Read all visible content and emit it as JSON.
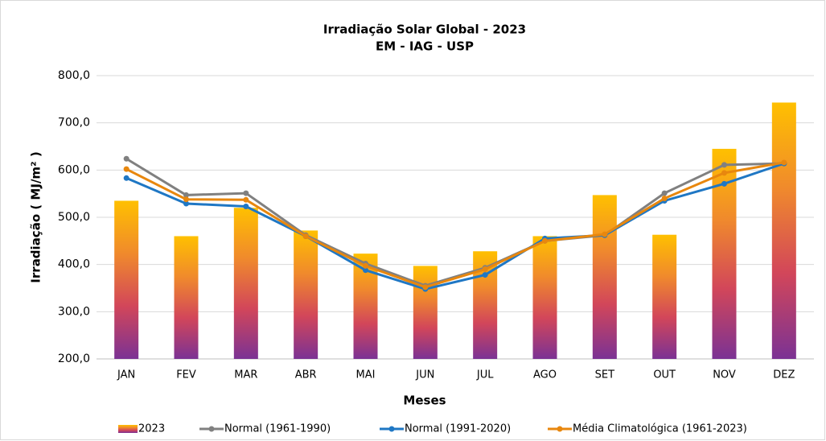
{
  "chart_data": {
    "type": "bar-line",
    "title": "Irradiação Solar Global - 2023",
    "subtitle": "EM - IAG - USP",
    "x_label": "Meses",
    "y_label": "Irradiação ( MJ/m² )",
    "categories": [
      "JAN",
      "FEV",
      "MAR",
      "ABR",
      "MAI",
      "JUN",
      "JUL",
      "AGO",
      "SET",
      "OUT",
      "NOV",
      "DEZ"
    ],
    "ylim": [
      200,
      800
    ],
    "yticks": [
      {
        "value": 200,
        "label": "200,0"
      },
      {
        "value": 300,
        "label": "300,0"
      },
      {
        "value": 400,
        "label": "400,0"
      },
      {
        "value": 500,
        "label": "500,0"
      },
      {
        "value": 600,
        "label": "600,0"
      },
      {
        "value": 700,
        "label": "700,0"
      },
      {
        "value": 800,
        "label": "800,0"
      }
    ],
    "grid": true,
    "legend": "bottom",
    "series": [
      {
        "name": "2023",
        "kind": "bar",
        "colors": [
          "#ffc000",
          "#f08a2c",
          "#d2465a",
          "#7b3294"
        ],
        "values": [
          535,
          460,
          520,
          472,
          423,
          397,
          428,
          460,
          547,
          463,
          645,
          743
        ]
      },
      {
        "name": "Normal (1961-1990)",
        "kind": "line",
        "color": "#808080",
        "values": [
          624,
          547,
          551,
          462,
          402,
          355,
          393,
          450,
          462,
          551,
          611,
          614
        ]
      },
      {
        "name": "Normal (1991-2020)",
        "kind": "line",
        "color": "#1f77c4",
        "values": [
          583,
          529,
          523,
          460,
          388,
          348,
          378,
          455,
          462,
          535,
          571,
          614
        ]
      },
      {
        "name": "Média Climatológica (1961-2023)",
        "kind": "line",
        "color": "#e8870e",
        "values": [
          602,
          538,
          537,
          460,
          397,
          352,
          390,
          450,
          464,
          540,
          594,
          616
        ]
      }
    ]
  }
}
